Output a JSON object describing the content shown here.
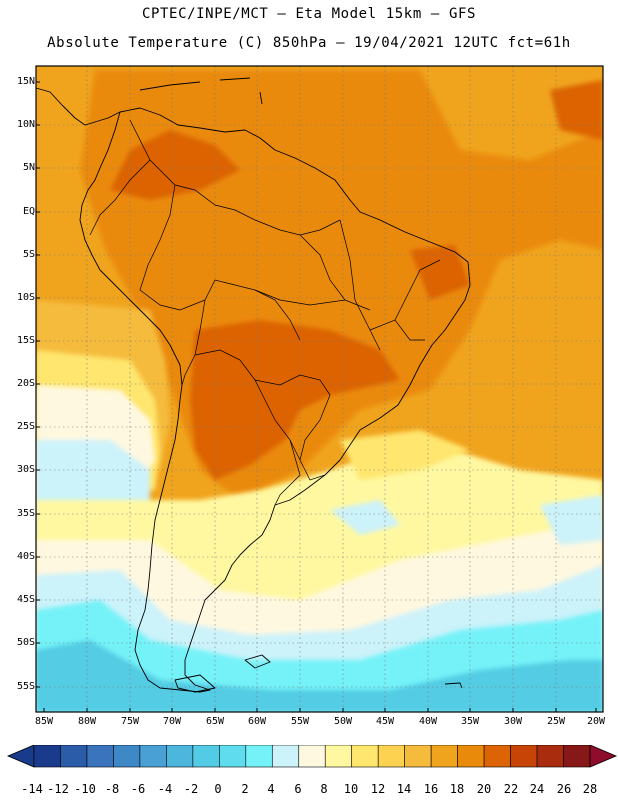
{
  "title_line1": "CPTEC/INPE/MCT –  Eta Model 15km – GFS",
  "title_line2": "Absolute Temperature (C) 850hPa – 19/04/2021 12UTC fct=61h",
  "lat_labels": [
    "15N",
    "10N",
    "5N",
    "EQ",
    "5S",
    "10S",
    "15S",
    "20S",
    "25S",
    "30S",
    "35S",
    "40S",
    "45S",
    "50S",
    "55S"
  ],
  "lon_labels": [
    "85W",
    "80W",
    "75W",
    "70W",
    "65W",
    "60W",
    "55W",
    "50W",
    "45W",
    "40W",
    "35W",
    "30W",
    "25W",
    "20W"
  ],
  "colorbar": {
    "labels": [
      "-14",
      "-12",
      "-10",
      "-8",
      "-6",
      "-4",
      "-2",
      "0",
      "2",
      "4",
      "6",
      "8",
      "10",
      "12",
      "14",
      "16",
      "18",
      "20",
      "22",
      "24",
      "26",
      "28"
    ],
    "colors": [
      "#1a3a8c",
      "#2a5ca8",
      "#3a74bc",
      "#3f88c8",
      "#48a0d4",
      "#4cb6dc",
      "#52cce4",
      "#5fdced",
      "#74f2f8",
      "#ccf2fa",
      "#fff8e0",
      "#fff8a0",
      "#ffe66e",
      "#fcd250",
      "#f5bb3c",
      "#f0a41e",
      "#ea8a0a",
      "#dc6404",
      "#c64406",
      "#aa2c0e",
      "#861818"
    ],
    "low_arrow": "#1a3a8c",
    "high_arrow": "#8e0c2c"
  },
  "legend_classes": {
    "cold_deep": "#52cce4",
    "cold_mid": "#74f2f8",
    "cool": "#ccf2fa",
    "mild": "#fff8e0",
    "pale_yellow": "#fff8a0",
    "yellow": "#ffe66e",
    "gold": "#f5bb3c",
    "orange": "#f0a41e",
    "deep_orange": "#ea8a0a",
    "burnt": "#dc6404"
  }
}
